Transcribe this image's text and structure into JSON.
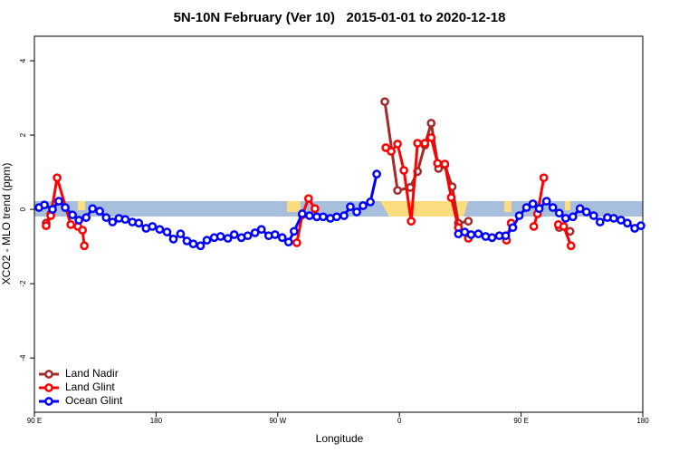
{
  "chart_data": {
    "type": "line",
    "title": "5N-10N February (Ver 10)   2015-01-01 to 2020-12-18",
    "x_label": "Longitude",
    "y_label": "XCO2 - MLO trend (ppm)",
    "xlim": [
      90,
      540
    ],
    "ylim": [
      -5.46,
      4.66
    ],
    "xticks": [
      {
        "value": 90,
        "label": "90 E"
      },
      {
        "value": 180,
        "label": "180"
      },
      {
        "value": 270,
        "label": "90 W"
      },
      {
        "value": 360,
        "label": "0"
      },
      {
        "value": 450,
        "label": "90 E"
      },
      {
        "value": 540,
        "label": "180"
      }
    ],
    "yticks": [
      -4,
      -2,
      0,
      2,
      4
    ],
    "legend": "bottom-left",
    "series": [
      {
        "name": "Land Nadir",
        "color": "#a52a2a",
        "x": [
          98.7,
          102.1,
          null,
          349.2,
          358.6,
          368.0,
          373.4,
          378.8,
          383.5,
          388.9,
          393.6,
          399.0,
          403.6,
          411.0,
          null,
          478.2,
          486.2
        ],
        "values": [
          -0.37,
          -0.12,
          null,
          2.9,
          0.51,
          0.59,
          1.02,
          1.73,
          2.32,
          1.1,
          1.2,
          0.61,
          -0.37,
          -0.32,
          null,
          -0.49,
          -0.59
        ]
      },
      {
        "name": "Land Glint",
        "color": "#ff0000",
        "x": [
          98.7,
          102.1,
          106.8,
          116.9,
          122.2,
          125.6,
          126.9,
          null,
          284.1,
          288.1,
          292.8,
          297.5,
          null,
          349.9,
          353.9,
          358.6,
          363.3,
          368.7,
          373.4,
          378.8,
          383.5,
          388.2,
          393.6,
          398.3,
          403.6,
          411.0,
          null,
          439.2,
          442.6,
          null,
          459.4,
          462.1,
          466.8,
          null,
          477.5,
          481.5,
          486.9
        ],
        "values": [
          -0.44,
          -0.17,
          0.85,
          -0.41,
          -0.46,
          -0.56,
          -0.98,
          null,
          -0.9,
          -0.15,
          0.29,
          0.02,
          null,
          1.66,
          1.56,
          1.76,
          1.05,
          -0.32,
          1.78,
          1.78,
          1.93,
          1.24,
          1.22,
          0.32,
          -0.49,
          -0.78,
          null,
          -0.83,
          -0.37,
          null,
          -0.46,
          -0.12,
          0.85,
          null,
          -0.41,
          -0.46,
          -0.98
        ]
      },
      {
        "name": "Ocean Glint",
        "color": "#0000ff",
        "x": [
          93.4,
          97.4,
          103.4,
          108.1,
          112.8,
          118.2,
          122.9,
          128.3,
          133.0,
          138.3,
          143.1,
          147.8,
          152.5,
          157.2,
          162.5,
          167.2,
          172.6,
          177.3,
          182.7,
          188.1,
          192.8,
          198.1,
          202.8,
          207.5,
          212.9,
          217.6,
          223.0,
          227.7,
          233.1,
          237.8,
          243.1,
          247.8,
          253.2,
          257.9,
          263.3,
          268.0,
          273.3,
          278.0,
          282.1,
          288.1,
          293.5,
          298.9,
          303.6,
          308.9,
          313.6,
          319.0,
          323.7,
          328.4,
          333.1,
          338.5,
          343.2,
          null,
          403.6,
          408.3,
          413.0,
          418.4,
          423.8,
          428.5,
          433.9,
          438.6,
          443.9,
          448.6,
          454.0,
          458.7,
          463.4,
          468.8,
          473.5,
          478.2,
          482.9,
          488.3,
          493.6,
          498.3,
          503.7,
          508.4,
          513.8,
          518.5,
          523.9,
          528.6,
          534.0,
          538.6
        ],
        "values": [
          0.05,
          0.12,
          0,
          0.22,
          0.05,
          -0.15,
          -0.29,
          -0.22,
          0.02,
          -0.05,
          -0.22,
          -0.34,
          -0.24,
          -0.27,
          -0.34,
          -0.37,
          -0.51,
          -0.46,
          -0.54,
          -0.61,
          -0.8,
          -0.66,
          -0.85,
          -0.93,
          -0.98,
          -0.83,
          -0.76,
          -0.73,
          -0.78,
          -0.68,
          -0.76,
          -0.71,
          -0.63,
          -0.54,
          -0.71,
          -0.68,
          -0.76,
          -0.88,
          -0.59,
          -0.12,
          -0.17,
          -0.2,
          -0.2,
          -0.24,
          -0.2,
          -0.17,
          0.07,
          -0.07,
          0.1,
          0.2,
          0.95,
          null,
          -0.66,
          -0.61,
          -0.68,
          -0.66,
          -0.73,
          -0.76,
          -0.71,
          -0.71,
          -0.49,
          -0.17,
          0.05,
          0.15,
          0.02,
          0.22,
          0.05,
          -0.1,
          -0.24,
          -0.2,
          0.02,
          -0.07,
          -0.17,
          -0.34,
          -0.22,
          -0.24,
          -0.29,
          -0.37,
          -0.51,
          -0.44
        ]
      }
    ]
  }
}
